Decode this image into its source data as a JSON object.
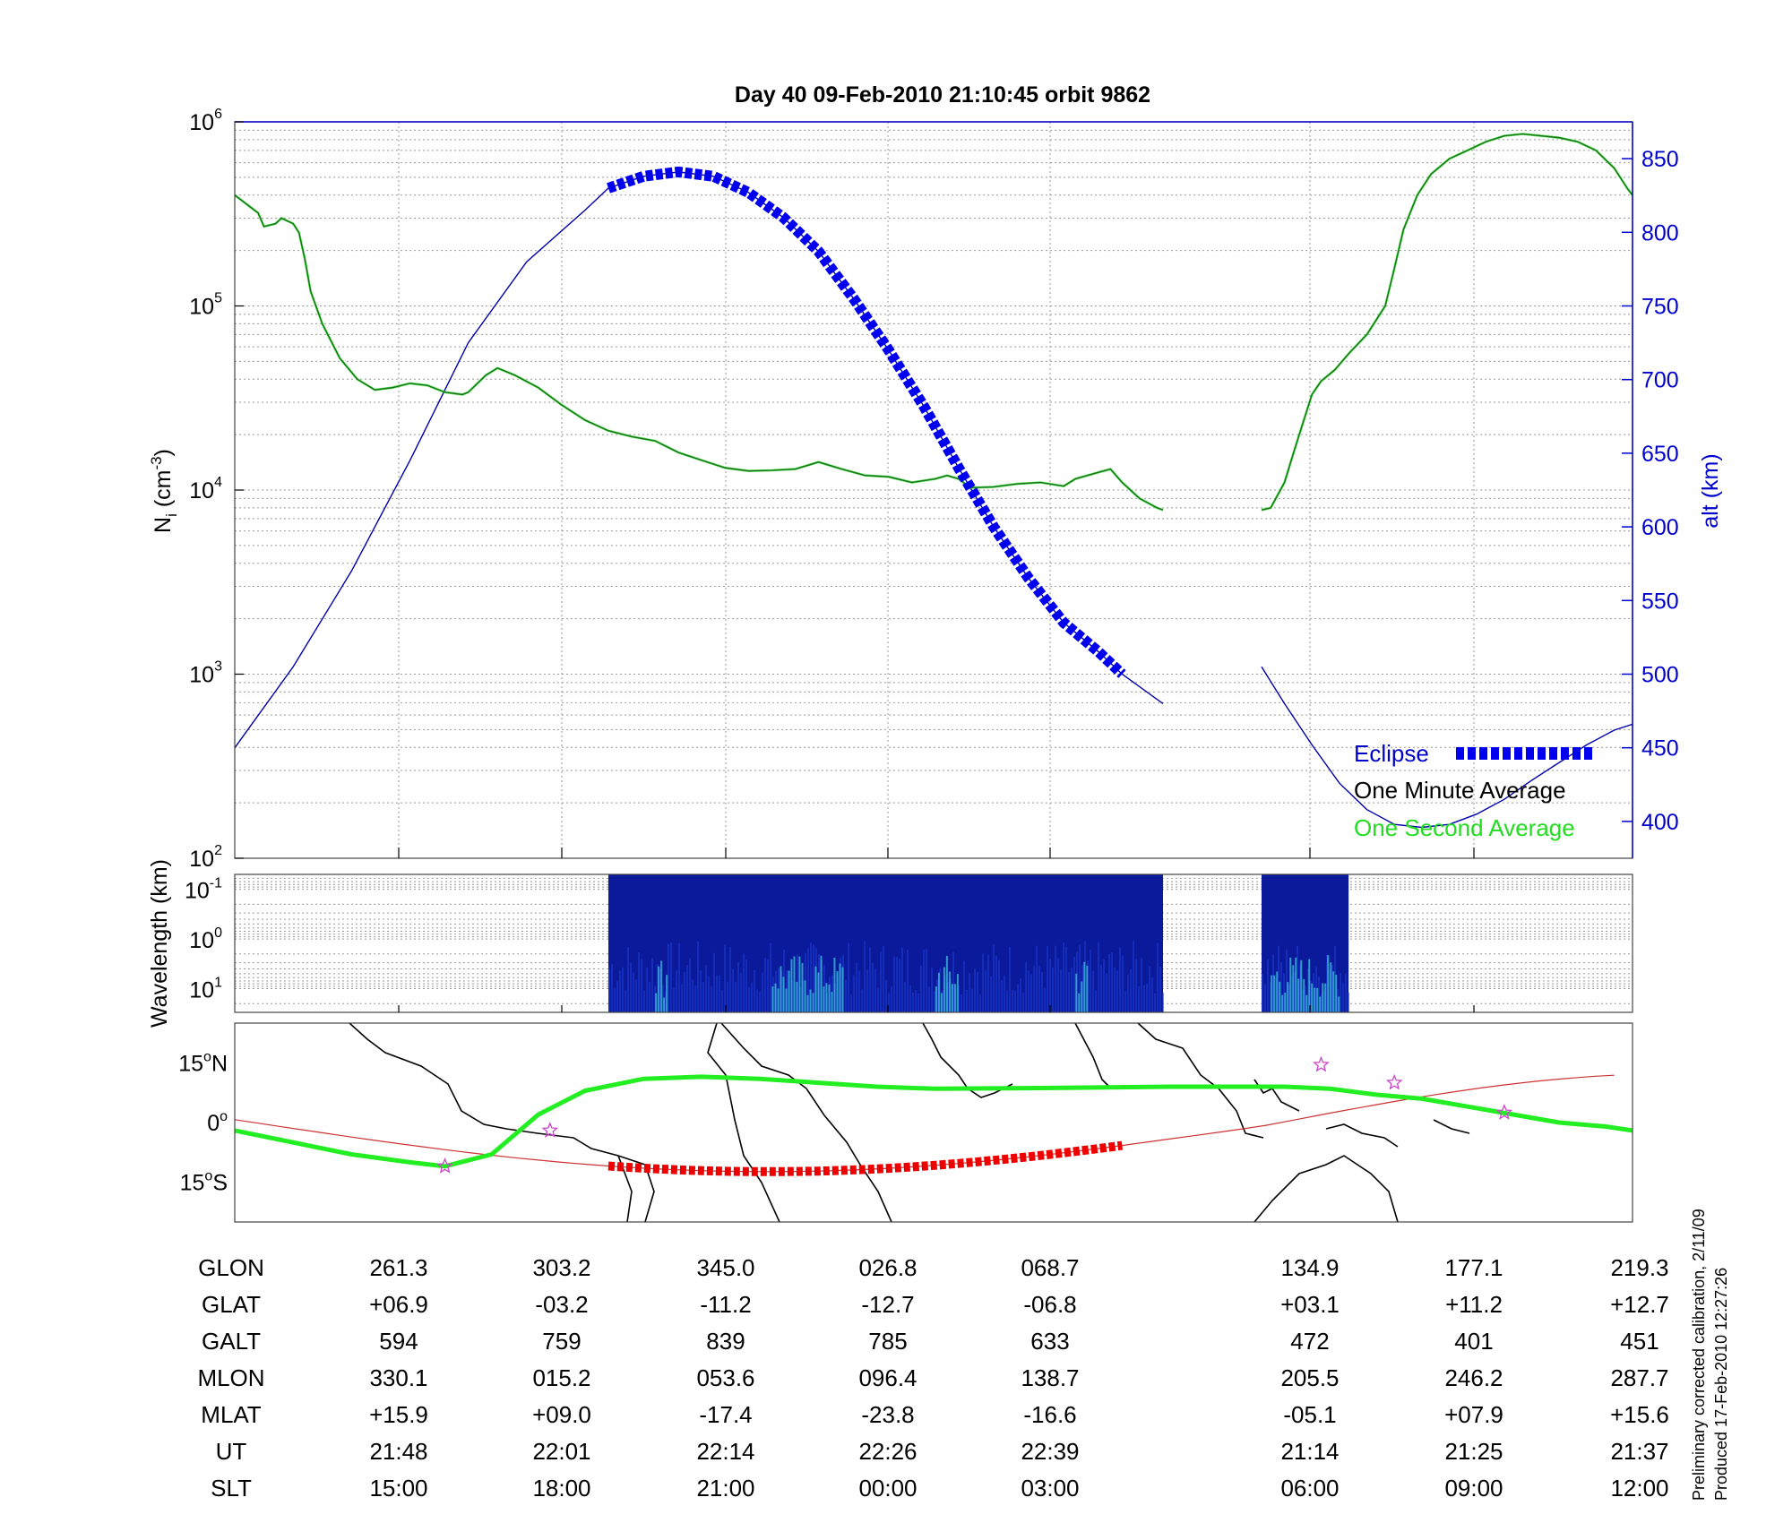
{
  "header": {
    "title": "Day 40  09-Feb-2010 21:10:45   orbit 9862"
  },
  "colors": {
    "density": "#1e6b1e",
    "density_1s": "#22dd22",
    "altitude": "#0000aa",
    "eclipse": "#0000ee",
    "track": "#22ee22",
    "track_line": "#cc3333",
    "track_eclipse": "#ee0000",
    "stars": "#cc44cc",
    "axis_right": "#0000cc"
  },
  "chart_data": [
    {
      "type": "line",
      "name": "density-panel",
      "ylabel_left": "N_i (cm^-3)",
      "ylabel_left_parts": {
        "base": "N",
        "sub": "i",
        "unit_open": " (cm",
        "sup": "-3",
        "unit_close": ")"
      },
      "ylabel_right": "alt (km)",
      "yscale_left": "log",
      "ylim_left": [
        100,
        1000000
      ],
      "left_ticks": [
        {
          "base": "10",
          "exp": "2",
          "value": 100
        },
        {
          "base": "10",
          "exp": "3",
          "value": 1000
        },
        {
          "base": "10",
          "exp": "4",
          "value": 10000
        },
        {
          "base": "10",
          "exp": "5",
          "value": 100000
        },
        {
          "base": "10",
          "exp": "6",
          "value": 1000000
        }
      ],
      "ylim_right": [
        375,
        875
      ],
      "right_ticks": [
        "400",
        "450",
        "500",
        "550",
        "600",
        "650",
        "700",
        "750",
        "800",
        "850"
      ],
      "legend_position": "bottom-right",
      "legend": {
        "eclipse": "Eclipse",
        "one_minute": "One Minute Average",
        "one_second": "One Second Average"
      },
      "xlim": [
        0,
        1
      ],
      "density": [
        [
          [
            0.0,
            400000
          ],
          [
            0.02,
            320000
          ],
          [
            0.025,
            270000
          ],
          [
            0.035,
            280000
          ],
          [
            0.04,
            300000
          ],
          [
            0.05,
            280000
          ],
          [
            0.055,
            250000
          ],
          [
            0.06,
            180000
          ],
          [
            0.065,
            120000
          ],
          [
            0.075,
            80000
          ],
          [
            0.09,
            52000
          ],
          [
            0.105,
            40000
          ],
          [
            0.12,
            35000
          ],
          [
            0.135,
            36000
          ],
          [
            0.15,
            38000
          ],
          [
            0.165,
            37000
          ],
          [
            0.18,
            34000
          ],
          [
            0.195,
            33000
          ],
          [
            0.2,
            34000
          ],
          [
            0.215,
            42000
          ],
          [
            0.225,
            46000
          ],
          [
            0.24,
            42000
          ],
          [
            0.26,
            36000
          ],
          [
            0.28,
            29000
          ],
          [
            0.3,
            24000
          ],
          [
            0.32,
            21000
          ],
          [
            0.34,
            19500
          ],
          [
            0.36,
            18500
          ],
          [
            0.38,
            16000
          ],
          [
            0.4,
            14500
          ],
          [
            0.42,
            13200
          ],
          [
            0.44,
            12700
          ],
          [
            0.46,
            12800
          ],
          [
            0.48,
            13000
          ],
          [
            0.5,
            14200
          ],
          [
            0.52,
            13000
          ],
          [
            0.54,
            12000
          ],
          [
            0.56,
            11800
          ],
          [
            0.58,
            11000
          ],
          [
            0.6,
            11500
          ],
          [
            0.61,
            12000
          ],
          [
            0.62,
            11500
          ],
          [
            0.63,
            10300
          ],
          [
            0.65,
            10400
          ],
          [
            0.67,
            10800
          ],
          [
            0.69,
            11000
          ],
          [
            0.71,
            10500
          ],
          [
            0.72,
            11500
          ],
          [
            0.74,
            12500
          ],
          [
            0.75,
            13000
          ],
          [
            0.76,
            11000
          ],
          [
            0.775,
            9000
          ],
          [
            0.79,
            8000
          ],
          [
            0.795,
            7800
          ]
        ],
        [
          [
            0.875,
            7800
          ],
          [
            0.885,
            8000
          ],
          [
            0.9,
            11000
          ],
          [
            0.91,
            16000
          ],
          [
            0.92,
            23000
          ],
          [
            0.93,
            33000
          ],
          [
            0.94,
            39000
          ],
          [
            0.955,
            45000
          ],
          [
            0.97,
            55000
          ],
          [
            0.99,
            70000
          ],
          [
            1.01,
            100000
          ],
          [
            1.02,
            160000
          ],
          [
            1.03,
            260000
          ],
          [
            1.045,
            400000
          ],
          [
            1.06,
            520000
          ],
          [
            1.08,
            630000
          ],
          [
            1.1,
            700000
          ],
          [
            1.12,
            780000
          ],
          [
            1.14,
            840000
          ],
          [
            1.16,
            860000
          ],
          [
            1.18,
            840000
          ],
          [
            1.2,
            820000
          ],
          [
            1.22,
            780000
          ],
          [
            1.24,
            700000
          ],
          [
            1.26,
            560000
          ],
          [
            1.275,
            430000
          ],
          [
            1.28,
            400000
          ]
        ]
      ],
      "altitude": [
        [
          [
            0.0,
            450
          ],
          [
            0.05,
            505
          ],
          [
            0.1,
            570
          ],
          [
            0.15,
            645
          ],
          [
            0.2,
            725
          ],
          [
            0.25,
            780
          ],
          [
            0.3,
            815
          ],
          [
            0.32,
            830
          ],
          [
            0.35,
            838
          ],
          [
            0.38,
            841
          ],
          [
            0.41,
            838
          ],
          [
            0.44,
            827
          ],
          [
            0.47,
            810
          ],
          [
            0.5,
            787
          ],
          [
            0.53,
            755
          ],
          [
            0.56,
            720
          ],
          [
            0.59,
            682
          ],
          [
            0.62,
            640
          ],
          [
            0.65,
            600
          ],
          [
            0.68,
            565
          ],
          [
            0.71,
            535
          ],
          [
            0.74,
            515
          ],
          [
            0.76,
            500
          ],
          [
            0.795,
            480
          ]
        ],
        [
          [
            0.875,
            505
          ],
          [
            0.9,
            480
          ],
          [
            0.93,
            452
          ],
          [
            0.96,
            426
          ],
          [
            0.99,
            408
          ],
          [
            1.02,
            398
          ],
          [
            1.05,
            396
          ],
          [
            1.08,
            398
          ],
          [
            1.11,
            405
          ],
          [
            1.14,
            415
          ],
          [
            1.17,
            428
          ],
          [
            1.2,
            440
          ],
          [
            1.23,
            452
          ],
          [
            1.26,
            462
          ],
          [
            1.28,
            466
          ]
        ]
      ],
      "eclipse_range": [
        0.32,
        0.77
      ]
    },
    {
      "type": "heatmap",
      "name": "wavelength-panel",
      "ylabel": "Wavelength (km)",
      "yscale": "log",
      "ticks": [
        {
          "base": "10",
          "exp": "-1",
          "value": 0.1
        },
        {
          "base": "10",
          "exp": "0",
          "value": 1
        },
        {
          "base": "10",
          "exp": "1",
          "value": 10
        }
      ],
      "data_blocks": [
        [
          0.32,
          0.795
        ],
        [
          0.875,
          0.97
        ]
      ],
      "bright_regions": [
        [
          0.36,
          0.37
        ],
        [
          0.46,
          0.52
        ],
        [
          0.6,
          0.62
        ],
        [
          0.72,
          0.73
        ],
        [
          0.885,
          0.96
        ]
      ]
    },
    {
      "type": "line",
      "name": "map-panel",
      "ylim": [
        -25,
        25
      ],
      "yticks": [
        {
          "value": 15,
          "label": "15",
          "unit": "o",
          "hemi": "N"
        },
        {
          "value": 0,
          "label": "0",
          "unit": "o",
          "hemi": ""
        },
        {
          "value": -15,
          "label": "15",
          "unit": "o",
          "hemi": "S"
        }
      ],
      "ground_track": [
        [
          0.0,
          -2
        ],
        [
          0.1,
          -8
        ],
        [
          0.15,
          -10
        ],
        [
          0.18,
          -11
        ],
        [
          0.22,
          -8
        ],
        [
          0.26,
          2
        ],
        [
          0.3,
          8
        ],
        [
          0.35,
          11
        ],
        [
          0.4,
          11.5
        ],
        [
          0.45,
          11
        ],
        [
          0.5,
          10
        ],
        [
          0.55,
          9
        ],
        [
          0.6,
          8.5
        ],
        [
          0.7,
          8.7
        ],
        [
          0.8,
          9
        ],
        [
          0.9,
          9
        ],
        [
          0.95,
          8.5
        ],
        [
          1.0,
          7
        ],
        [
          1.05,
          6
        ],
        [
          1.1,
          4
        ],
        [
          1.15,
          2
        ],
        [
          1.2,
          0
        ],
        [
          1.25,
          -1
        ],
        [
          1.28,
          -2
        ]
      ],
      "stars": [
        [
          0.18,
          -11
        ],
        [
          0.27,
          -2
        ],
        [
          0.94,
          14.5
        ],
        [
          1.02,
          10
        ],
        [
          1.14,
          2.5
        ]
      ]
    }
  ],
  "x_axis_table": {
    "rows": [
      {
        "label": "GLON",
        "values": [
          "261.3",
          "303.2",
          "345.0",
          "026.8",
          "068.7",
          "134.9",
          "177.1",
          "219.3"
        ]
      },
      {
        "label": "GLAT",
        "values": [
          "+06.9",
          "-03.2",
          "-11.2",
          "-12.7",
          "-06.8",
          "+03.1",
          "+11.2",
          "+12.7"
        ]
      },
      {
        "label": "GALT",
        "values": [
          "594",
          "759",
          "839",
          "785",
          "633",
          "472",
          "401",
          "451"
        ]
      },
      {
        "label": "MLON",
        "values": [
          "330.1",
          "015.2",
          "053.6",
          "096.4",
          "138.7",
          "205.5",
          "246.2",
          "287.7"
        ]
      },
      {
        "label": "MLAT",
        "values": [
          "+15.9",
          "+09.0",
          "-17.4",
          "-23.8",
          "-16.6",
          "-05.1",
          "+07.9",
          "+15.6"
        ]
      },
      {
        "label": "UT",
        "values": [
          "21:48",
          "22:01",
          "22:14",
          "22:26",
          "22:39",
          "21:14",
          "21:25",
          "21:37"
        ]
      },
      {
        "label": "SLT",
        "values": [
          "15:00",
          "18:00",
          "21:00",
          "00:00",
          "03:00",
          "06:00",
          "09:00",
          "12:00"
        ]
      }
    ]
  },
  "footer": {
    "note_line1": "Preliminary corrected calibration, 2/11/09",
    "note_line2": "Produced 17-Feb-2010 12:27:26"
  }
}
